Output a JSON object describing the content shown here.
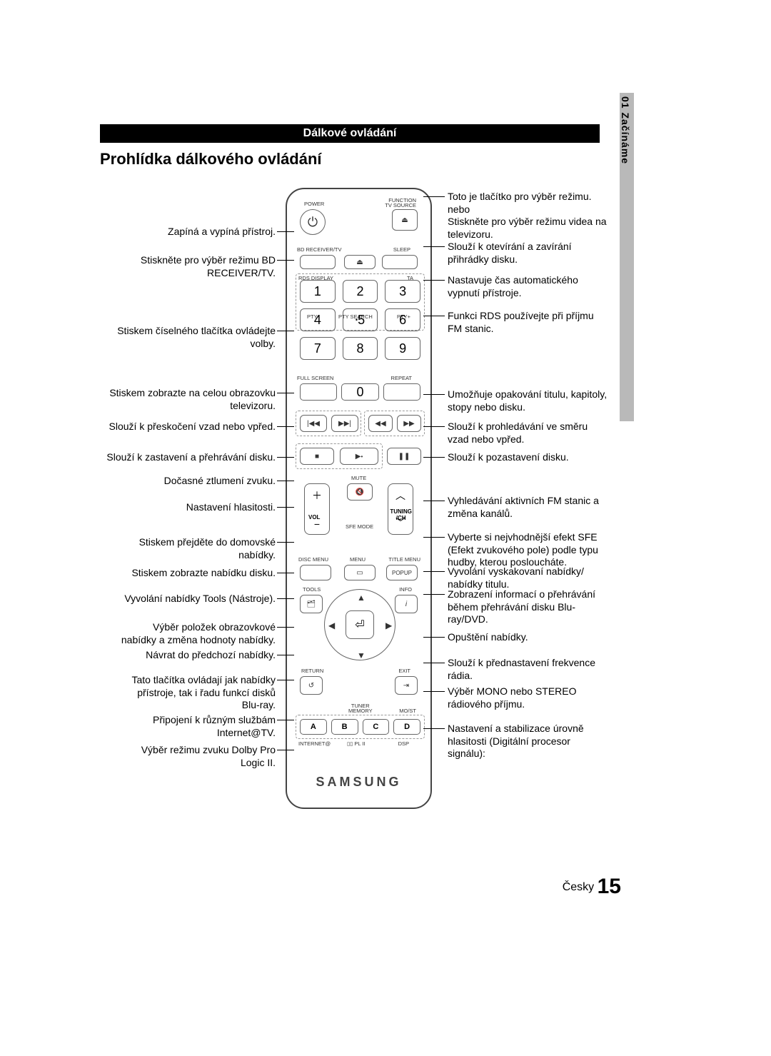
{
  "sideTab": "01  Začínáme",
  "headerBar": "Dálkové ovládání",
  "heading": "Prohlídka dálkového ovládání",
  "remote": {
    "powerLabel": "POWER",
    "funcLabel1": "FUNCTION",
    "funcLabel2": "TV SOURCE",
    "bdReceiver": "BD RECEIVER/TV",
    "sleep": "SLEEP",
    "rdsDisplay": "RDS DISPLAY",
    "ta": "TA",
    "ptyMinus": "PTY-",
    "ptySearch": "PTY SEARCH",
    "ptyPlus": "PTY+",
    "fullScreen": "FULL SCREEN",
    "repeat": "REPEAT",
    "mute": "MUTE",
    "vol": "VOL",
    "tuning": "TUNING",
    "ch": "/CH",
    "sfe": "SFE MODE",
    "discMenu": "DISC MENU",
    "menu": "MENU",
    "titleMenu": "TITLE MENU",
    "popup": "POPUP",
    "tools": "TOOLS",
    "info": "INFO",
    "return": "RETURN",
    "exit": "EXIT",
    "tunerMem": "TUNER\nMEMORY",
    "most": "MO/ST",
    "internet": "INTERNET@",
    "dpl": "▯▯ PL II",
    "dsp": "DSP",
    "brand": "SAMSUNG",
    "abcd": [
      "A",
      "B",
      "C",
      "D"
    ],
    "keys": [
      "1",
      "2",
      "3",
      "4",
      "5",
      "6",
      "7",
      "8",
      "9",
      "",
      "0",
      ""
    ]
  },
  "leftAnn": [
    "Zapíná a vypíná přístroj.",
    "Stiskněte pro výběr režimu BD\nRECEIVER/TV.",
    "Stiskem číselného tlačítka ovládejte volby.",
    "Stiskem zobrazte na celou obrazovku\ntelevizoru.",
    "Slouží k přeskočení vzad nebo vpřed.",
    "Slouží k zastavení a přehrávání disku.",
    "Dočasné ztlumení zvuku.",
    "Nastavení hlasitosti.",
    "Stiskem přejděte do domovské\nnabídky.",
    "Stiskem zobrazte nabídku disku.",
    "Vyvolání nabídky Tools (Nástroje).",
    "Výběr položek obrazovkové\nnabídky a změna hodnoty nabídky.",
    "Návrat do předchozí nabídky.",
    "Tato tlačítka ovládají jak nabídky\npřístroje, tak i řadu funkcí disků\nBlu-ray.",
    "Připojení k různým službám\nInternet@TV.",
    "Výběr režimu zvuku Dolby Pro\nLogic II."
  ],
  "rightAnn": [
    "Toto je tlačítko pro výběr režimu.\nnebo\nStiskněte pro výběr režimu videa na\ntelevizoru.",
    "Slouží k otevírání a zavírání\npřihrádky disku.",
    "Nastavuje čas automatického\nvypnutí přístroje.",
    "Funkci RDS používejte při příjmu\nFM stanic.",
    "Umožňuje opakování titulu, kapitoly,\nstopy nebo disku.",
    "Slouží k prohledávání ve směru\nvzad nebo vpřed.",
    "Slouží k pozastavení disku.",
    "Vyhledávání aktivních FM stanic a\nzměna kanálů.",
    "Vyberte si nejvhodnější efekt SFE\n(Efekt zvukového pole) podle typu\nhudby, kterou posloucháte.",
    "Vyvolání vyskakovaní nabídky/\nnabídky titulu.",
    "Zobrazení informací o přehrávání\nběhem přehrávání disku Blu-\nray/DVD.",
    "Opuštění nabídky.",
    "Slouží k přednastavení frekvence\nrádia.",
    "Výběr MONO nebo STEREO\nrádiového příjmu.",
    "Nastavení a stabilizace úrovně\nhlasitosti (Digitální procesor\nsignálu):"
  ],
  "footer": {
    "lang": "Česky",
    "page": "15"
  },
  "layout": {
    "leftY": [
      316,
      356,
      455,
      542,
      589,
      632,
      665,
      702,
      751,
      794,
      830,
      870,
      909,
      944,
      1000,
      1042
    ],
    "rightY": [
      267,
      337,
      384,
      434,
      544,
      589,
      632,
      693,
      744,
      792,
      824,
      884,
      920,
      960,
      1012
    ]
  }
}
